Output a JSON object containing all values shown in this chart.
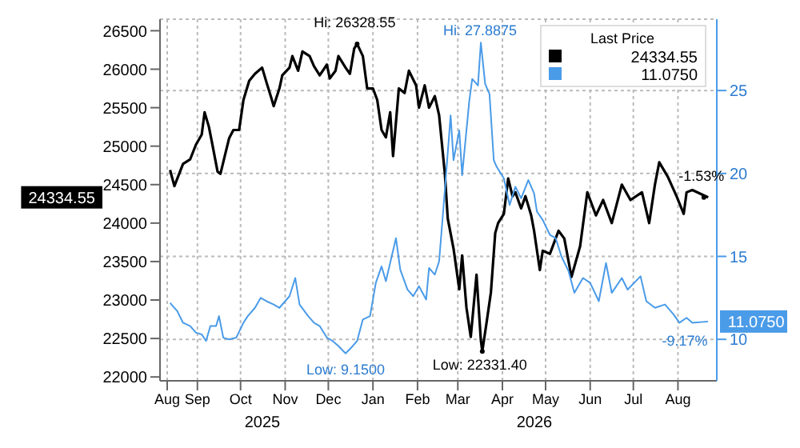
{
  "chart_data": {
    "type": "line",
    "legend_title": "Last Price",
    "grid": true,
    "line_style": "solid",
    "marker": "none",
    "xlim": [
      "2025-08-06",
      "2026-08-28"
    ],
    "xticks": [
      {
        "value": "2025-08-11",
        "label": "Aug"
      },
      {
        "value": "2025-09-01",
        "label": "Sep"
      },
      {
        "value": "2025-10-01",
        "label": "Oct"
      },
      {
        "value": "2025-11-01",
        "label": "Nov"
      },
      {
        "value": "2025-12-01",
        "label": "Dec"
      },
      {
        "value": "2026-01-01",
        "label": "Jan"
      },
      {
        "value": "2026-02-01",
        "label": "Feb"
      },
      {
        "value": "2026-03-01",
        "label": "Mar"
      },
      {
        "value": "2026-04-01",
        "label": "Apr"
      },
      {
        "value": "2026-05-01",
        "label": "May"
      },
      {
        "value": "2026-06-01",
        "label": "Jun"
      },
      {
        "value": "2026-07-01",
        "label": "Jul"
      },
      {
        "value": "2026-08-01",
        "label": "Aug"
      }
    ],
    "ylim": [
      21950,
      26650
    ],
    "yticks": [
      22000,
      22500,
      23000,
      23500,
      24000,
      24500,
      25000,
      25500,
      26000,
      26500
    ],
    "y2lim": [
      7.5,
      29.3
    ],
    "y2ticks": [
      10,
      15,
      20,
      25
    ],
    "series": [
      {
        "color": "#000000",
        "x": [
          "2025-08-13",
          "2025-08-16",
          "2025-08-22",
          "2025-08-27",
          "2025-08-31",
          "2025-09-04",
          "2025-09-06",
          "2025-09-09",
          "2025-09-11",
          "2025-09-15",
          "2025-09-17",
          "2025-09-20",
          "2025-09-23",
          "2025-09-26",
          "2025-09-30",
          "2025-10-03",
          "2025-10-07",
          "2025-10-11",
          "2025-10-16",
          "2025-10-19",
          "2025-10-22",
          "2025-10-24",
          "2025-10-28",
          "2025-10-30",
          "2025-11-04",
          "2025-11-06",
          "2025-11-10",
          "2025-11-13",
          "2025-11-18",
          "2025-11-21",
          "2025-11-25",
          "2025-11-30",
          "2025-12-02",
          "2025-12-06",
          "2025-12-08",
          "2025-12-13",
          "2025-12-16",
          "2025-12-19",
          "2025-12-21",
          "2025-12-25",
          "2025-12-28",
          "2026-01-01",
          "2026-01-04",
          "2026-01-07",
          "2026-01-10",
          "2026-01-13",
          "2026-01-15",
          "2026-01-19",
          "2026-01-23",
          "2026-01-26",
          "2026-01-31",
          "2026-02-02",
          "2026-02-06",
          "2026-02-09",
          "2026-02-13",
          "2026-02-16",
          "2026-02-20",
          "2026-02-22",
          "2026-02-26",
          "2026-03-02",
          "2026-03-04",
          "2026-03-07",
          "2026-03-10",
          "2026-03-14",
          "2026-03-17",
          "2026-03-18",
          "2026-03-21",
          "2026-03-24",
          "2026-03-27",
          "2026-03-29",
          "2026-04-02",
          "2026-04-05",
          "2026-04-08",
          "2026-04-10",
          "2026-04-14",
          "2026-04-17",
          "2026-04-21",
          "2026-04-23",
          "2026-04-27",
          "2026-04-29",
          "2026-05-04",
          "2026-05-10",
          "2026-05-14",
          "2026-05-19",
          "2026-05-25",
          "2026-05-30",
          "2026-06-05",
          "2026-06-10",
          "2026-06-16",
          "2026-06-23",
          "2026-06-29",
          "2026-07-07",
          "2026-07-12",
          "2026-07-16",
          "2026-07-19",
          "2026-07-25",
          "2026-07-31",
          "2026-08-05",
          "2026-08-07",
          "2026-08-11",
          "2026-08-22"
        ],
        "values": [
          24690,
          24480,
          24770,
          24830,
          25020,
          25150,
          25440,
          25250,
          25060,
          24670,
          24640,
          24870,
          25100,
          25210,
          25210,
          25600,
          25850,
          25940,
          26020,
          25830,
          25650,
          25520,
          25750,
          25920,
          26020,
          26170,
          25980,
          26230,
          26170,
          26040,
          25920,
          26060,
          25880,
          25980,
          26170,
          26020,
          25940,
          26270,
          26328.55,
          26170,
          25750,
          25750,
          25600,
          25210,
          25115,
          25440,
          24870,
          25750,
          25690,
          25980,
          25790,
          25500,
          25790,
          25500,
          25650,
          25400,
          24640,
          24060,
          23670,
          23140,
          23580,
          22900,
          22520,
          23330,
          22480,
          22331.4,
          22710,
          23100,
          23870,
          24000,
          24120,
          24580,
          24350,
          24400,
          24190,
          24350,
          24100,
          23900,
          23390,
          23640,
          23600,
          23900,
          23800,
          23300,
          23700,
          24400,
          24100,
          24300,
          24000,
          24500,
          24300,
          24400,
          24000,
          24500,
          24790,
          24600,
          24350,
          24120,
          24400,
          24430,
          24334.55
        ]
      },
      {
        "color": "#4a9be8",
        "axis": "y2",
        "x": [
          "2025-08-13",
          "2025-08-18",
          "2025-08-22",
          "2025-08-27",
          "2025-08-31",
          "2025-09-04",
          "2025-09-07",
          "2025-09-10",
          "2025-09-14",
          "2025-09-16",
          "2025-09-19",
          "2025-09-23",
          "2025-09-28",
          "2025-10-03",
          "2025-10-06",
          "2025-10-11",
          "2025-10-15",
          "2025-10-19",
          "2025-10-24",
          "2025-10-28",
          "2025-11-04",
          "2025-11-08",
          "2025-11-11",
          "2025-11-17",
          "2025-11-21",
          "2025-11-25",
          "2025-11-30",
          "2025-12-04",
          "2025-12-08",
          "2025-12-13",
          "2025-12-18",
          "2025-12-21",
          "2025-12-25",
          "2025-12-30",
          "2026-01-03",
          "2026-01-07",
          "2026-01-10",
          "2026-01-17",
          "2026-01-20",
          "2026-01-25",
          "2026-01-29",
          "2026-02-02",
          "2026-02-07",
          "2026-02-09",
          "2026-02-13",
          "2026-02-16",
          "2026-02-20",
          "2026-02-24",
          "2026-02-26",
          "2026-03-02",
          "2026-03-04",
          "2026-03-09",
          "2026-03-11",
          "2026-03-15",
          "2026-03-17",
          "2026-03-20",
          "2026-03-23",
          "2026-03-26",
          "2026-03-28",
          "2026-04-02",
          "2026-04-06",
          "2026-04-10",
          "2026-04-14",
          "2026-04-19",
          "2026-04-23",
          "2026-04-25",
          "2026-04-29",
          "2026-05-04",
          "2026-05-08",
          "2026-05-12",
          "2026-05-17",
          "2026-05-21",
          "2026-05-27",
          "2026-06-01",
          "2026-06-07",
          "2026-06-12",
          "2026-06-16",
          "2026-06-23",
          "2026-06-27",
          "2026-07-06",
          "2026-07-10",
          "2026-07-16",
          "2026-07-23",
          "2026-07-29",
          "2026-08-02",
          "2026-08-07",
          "2026-08-11",
          "2026-08-22"
        ],
        "values": [
          12.2,
          11.7,
          11.0,
          10.8,
          10.4,
          10.3,
          9.9,
          10.8,
          10.8,
          11.4,
          10.1,
          10.0,
          10.1,
          11.0,
          11.4,
          11.9,
          12.5,
          12.3,
          12.1,
          11.9,
          12.6,
          13.7,
          12.1,
          11.4,
          11.0,
          10.8,
          10.1,
          9.9,
          9.6,
          9.15,
          9.6,
          9.9,
          11.2,
          11.4,
          13.4,
          14.4,
          13.5,
          16.1,
          14.2,
          13.0,
          12.6,
          13.2,
          12.4,
          14.3,
          13.9,
          14.7,
          19.0,
          23.5,
          20.8,
          22.6,
          19.9,
          24.4,
          25.7,
          25.3,
          27.8875,
          25.4,
          24.8,
          20.8,
          20.4,
          19.7,
          18.1,
          19.2,
          18.5,
          19.6,
          18.8,
          17.7,
          17.2,
          16.3,
          16.1,
          15.0,
          14.1,
          12.8,
          13.7,
          13.4,
          12.3,
          14.6,
          12.8,
          13.7,
          13.0,
          13.8,
          12.3,
          11.9,
          12.1,
          11.5,
          11.0,
          11.3,
          11.0,
          11.075
        ]
      }
    ],
    "annotations": [
      {
        "text": "Hi: 26328.55",
        "x": "2025-12-21",
        "y": 26328.55
      },
      {
        "text": "Low: 22331.40",
        "x": "2026-03-18",
        "y": 22331.4
      },
      "Hi: 27.8875",
      "Low: 9.1500",
      {
        "text": "-1.53%",
        "x": "2026-08-19",
        "y": 24334.55
      },
      "-9.17%",
      "2025",
      "2026",
      "24334.55",
      "11.0750",
      "24334.55",
      "11.0750"
    ]
  }
}
